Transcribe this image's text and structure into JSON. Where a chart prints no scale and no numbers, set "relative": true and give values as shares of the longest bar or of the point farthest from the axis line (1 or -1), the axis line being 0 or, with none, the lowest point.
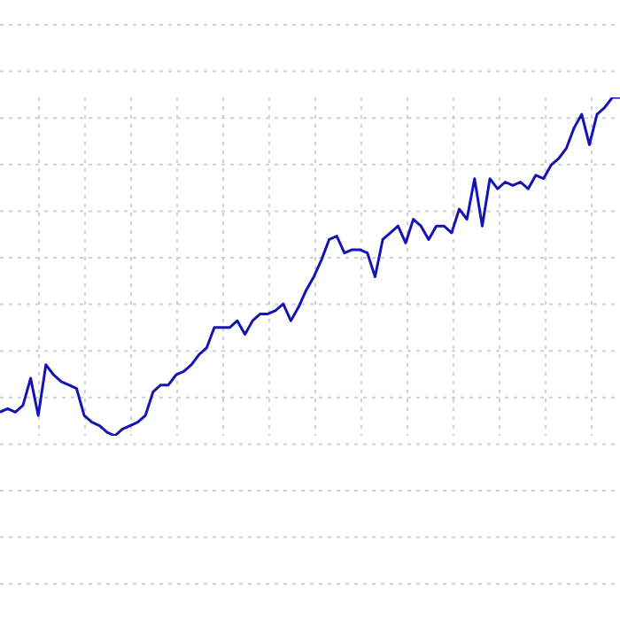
{
  "chart_data": {
    "type": "line",
    "relative": true,
    "grid": true,
    "categories": [
      null,
      null,
      null,
      null,
      null,
      null,
      null,
      null,
      null,
      null,
      null,
      null,
      null,
      null,
      null,
      null,
      null,
      null,
      null,
      null,
      null,
      null,
      null,
      null,
      null,
      null,
      null,
      null,
      null,
      null,
      null,
      null,
      null,
      null,
      null,
      null,
      null,
      null,
      null,
      null,
      null,
      null,
      null,
      null,
      null,
      null,
      null,
      null,
      null,
      null,
      null,
      null,
      null,
      null,
      null,
      null,
      null,
      null,
      null,
      null,
      null,
      null,
      null,
      null,
      null,
      null,
      null,
      null,
      null,
      null,
      null,
      null,
      null,
      null,
      null,
      null,
      null,
      null,
      null,
      null,
      null,
      null
    ],
    "series": [
      {
        "color": "#1414b4",
        "values": [
          0.07,
          0.08,
          0.07,
          0.09,
          0.17,
          0.06,
          0.21,
          0.18,
          0.16,
          0.15,
          0.14,
          0.06,
          0.04,
          0.03,
          0.01,
          0,
          0.02,
          0.03,
          0.04,
          0.06,
          0.13,
          0.15,
          0.15,
          0.18,
          0.19,
          0.21,
          0.24,
          0.26,
          0.32,
          0.32,
          0.32,
          0.34,
          0.3,
          0.34,
          0.36,
          0.36,
          0.37,
          0.39,
          0.34,
          0.38,
          0.43,
          0.47,
          0.52,
          0.58,
          0.59,
          0.54,
          0.55,
          0.55,
          0.54,
          0.47,
          0.58,
          0.6,
          0.62,
          0.57,
          0.64,
          0.62,
          0.58,
          0.62,
          0.62,
          0.6,
          0.67,
          0.64,
          0.76,
          0.62,
          0.76,
          0.73,
          0.75,
          0.74,
          0.75,
          0.73,
          0.77,
          0.76,
          0.8,
          0.82,
          0.85,
          0.91,
          0.95,
          0.86,
          0.95,
          0.97,
          1,
          1
        ]
      }
    ]
  }
}
